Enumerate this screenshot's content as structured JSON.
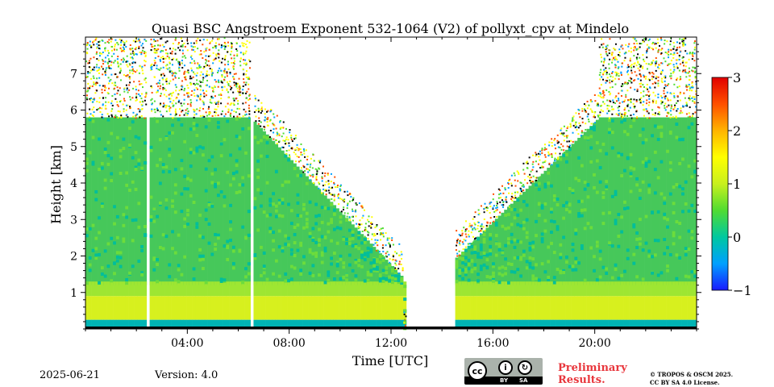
{
  "chart_data": {
    "type": "heatmap",
    "title": "Quasi BSC Angstroem Exponent 532-1064 (V2) of pollyxt_cpv at Mindelo",
    "xlabel": "Time [UTC]",
    "ylabel": "Height [km]",
    "x_ticks": [
      "04:00",
      "08:00",
      "12:00",
      "16:00",
      "20:00"
    ],
    "x_tick_hours": [
      4,
      8,
      12,
      16,
      20
    ],
    "xlim_hours": [
      0,
      24
    ],
    "y_ticks": [
      "1",
      "2",
      "3",
      "4",
      "5",
      "6",
      "7"
    ],
    "y_tick_values": [
      1,
      2,
      3,
      4,
      5,
      6,
      7
    ],
    "ylim_km": [
      0,
      8
    ],
    "colorbar": {
      "min": -1,
      "max": 3,
      "ticks": [
        "−1",
        "0",
        "1",
        "2",
        "3"
      ],
      "tick_values": [
        -1,
        0,
        1,
        2,
        3
      ],
      "colormap": [
        "#1a1aff",
        "#00a0ff",
        "#00c8a0",
        "#50dc32",
        "#c8f01e",
        "#ffff00",
        "#ffb400",
        "#ff5000",
        "#e10000"
      ]
    },
    "colors": {
      "surface_band": "#00b4b4",
      "low_layer": "#d7f01e",
      "aerosol_layer": "#46c85a"
    }
  },
  "footer": {
    "date": "2025-06-21",
    "version": "Version: 4.0",
    "preliminary": [
      "Preliminary",
      "Results."
    ],
    "copyright": [
      "© TROPOS & OSCM 2025.",
      "CC BY SA 4.0 License."
    ],
    "license_badge": {
      "cc": "cc",
      "by": "BY",
      "sa": "SA"
    }
  }
}
